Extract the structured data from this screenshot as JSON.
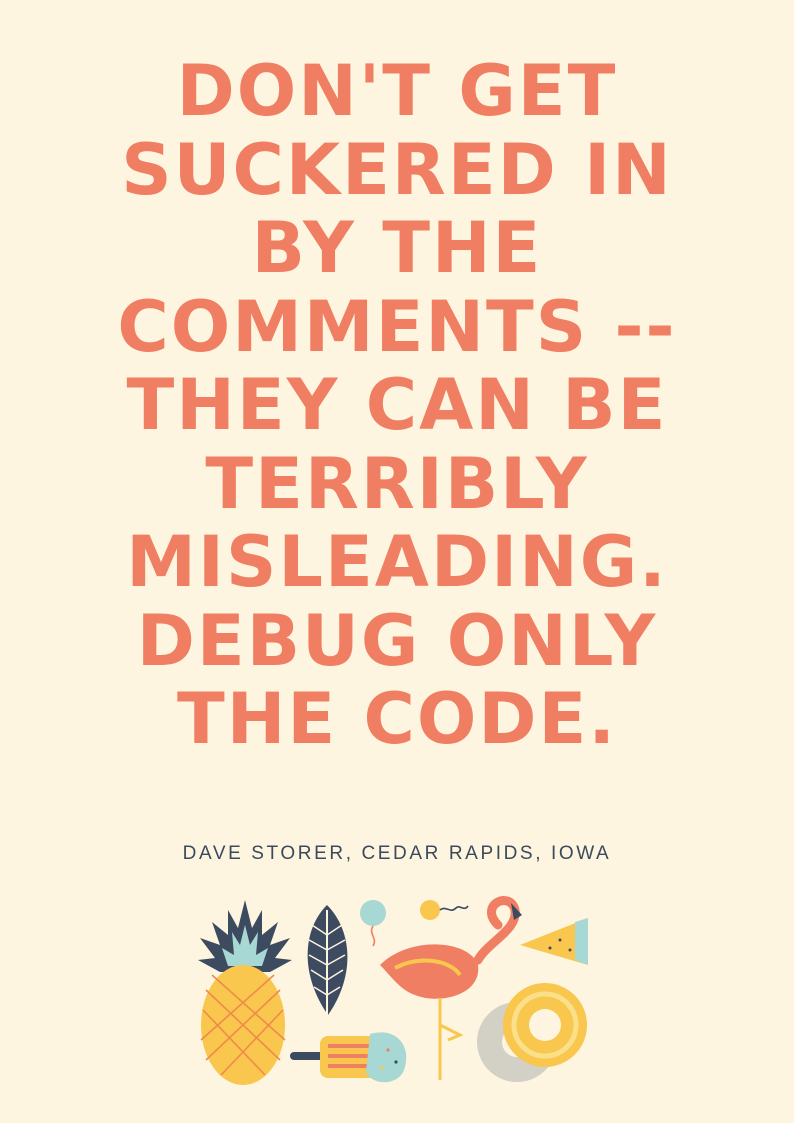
{
  "poster": {
    "quote_lines": [
      "DON'T GET",
      "SUCKERED IN",
      "BY THE",
      "COMMENTS --",
      "THEY CAN BE",
      "TERRIBLY",
      "MISLEADING.",
      "DEBUG ONLY",
      "THE CODE."
    ],
    "author": "DAVE STORER, CEDAR RAPIDS, IOWA"
  },
  "colors": {
    "background": "#fdf5df",
    "quote": "#f07e62",
    "author": "#3a4a5c"
  },
  "icons": [
    "pineapple-icon",
    "leaf-icon",
    "balloon-icon",
    "flamingo-icon",
    "watermelon-icon",
    "popsicle-icon",
    "donut-icon"
  ]
}
